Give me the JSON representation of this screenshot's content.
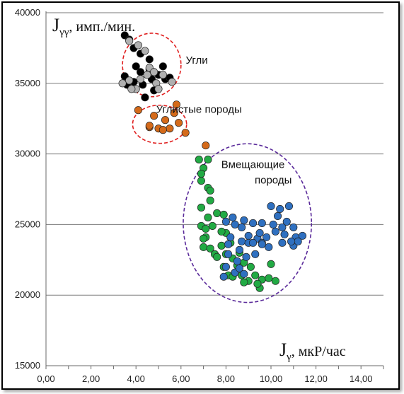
{
  "chart_data": {
    "type": "scatter",
    "y_axis_title": {
      "main": "J",
      "sub": "γγ",
      "unit": ", имп./мин."
    },
    "x_axis_title": {
      "main": "J",
      "sub": "γ",
      "unit": ", мкР/час"
    },
    "xlim": [
      0,
      15
    ],
    "ylim": [
      15000,
      40000
    ],
    "x_ticks": [
      "0,00",
      "2,00",
      "4,00",
      "6,00",
      "8,00",
      "10,00",
      "12,00",
      "14,00"
    ],
    "y_ticks": [
      "15000",
      "20000",
      "25000",
      "30000",
      "35000",
      "40000"
    ],
    "grid": {
      "horizontal": true,
      "vertical": false
    },
    "annotations": [
      {
        "text": "Угли",
        "x": 6.7,
        "y": 36400
      },
      {
        "text": "Углистые  породы",
        "x": 6.8,
        "y": 32900
      },
      {
        "text": "Вмещающие",
        "x": 9.2,
        "y": 29000
      },
      {
        "text": "породы",
        "x": 10.1,
        "y": 27900
      }
    ],
    "ellipses": [
      {
        "name": "Угли",
        "cx": 4.7,
        "cy": 36300,
        "rx": 1.3,
        "ry": 2250,
        "color": "#e02020"
      },
      {
        "name": "Углистые  породы",
        "cx": 5.05,
        "cy": 32100,
        "rx": 1.2,
        "ry": 1350,
        "color": "#e02020"
      },
      {
        "name": "Вмещающие  породы",
        "cx": 8.95,
        "cy": 25100,
        "rx": 2.85,
        "ry": 5620,
        "color": "#5a2a9a"
      }
    ],
    "series": [
      {
        "color": "#000000",
        "points": [
          [
            3.5,
            38400
          ],
          [
            3.7,
            38100
          ],
          [
            3.9,
            37500
          ],
          [
            4.2,
            37100
          ],
          [
            4.6,
            36700
          ],
          [
            3.5,
            35500
          ],
          [
            3.9,
            35100
          ],
          [
            4.3,
            34900
          ],
          [
            4.7,
            35300
          ],
          [
            5.0,
            35600
          ],
          [
            5.3,
            35300
          ],
          [
            4.8,
            34500
          ],
          [
            4.4,
            34000
          ],
          [
            3.6,
            34900
          ],
          [
            4.2,
            35800
          ],
          [
            5.2,
            36200
          ],
          [
            5.5,
            35400
          ],
          [
            4.0,
            36200
          ],
          [
            4.6,
            36000
          ]
        ]
      },
      {
        "color": "#b0b0b0",
        "points": [
          [
            3.7,
            38000
          ],
          [
            4.1,
            37700
          ],
          [
            4.4,
            37300
          ],
          [
            3.7,
            35200
          ],
          [
            4.0,
            34600
          ],
          [
            4.5,
            35600
          ],
          [
            4.9,
            35000
          ],
          [
            5.2,
            35600
          ],
          [
            5.6,
            35100
          ],
          [
            3.8,
            34600
          ],
          [
            4.6,
            36100
          ],
          [
            4.8,
            35800
          ],
          [
            4.2,
            35300
          ],
          [
            3.4,
            35000
          ],
          [
            5.0,
            34600
          ]
        ]
      },
      {
        "color": "#d46a1a",
        "points": [
          [
            4.1,
            33100
          ],
          [
            4.8,
            32700
          ],
          [
            5.3,
            32400
          ],
          [
            5.7,
            32900
          ],
          [
            5.8,
            33500
          ],
          [
            4.6,
            31900
          ],
          [
            5.0,
            31800
          ],
          [
            5.5,
            31800
          ],
          [
            6.2,
            31500
          ],
          [
            7.1,
            30600
          ],
          [
            4.6,
            32000
          ],
          [
            5.2,
            31700
          ],
          [
            5.9,
            32200
          ]
        ]
      },
      {
        "color": "#22aa44",
        "points": [
          [
            6.8,
            29600
          ],
          [
            7.0,
            29000
          ],
          [
            6.9,
            28100
          ],
          [
            7.2,
            27600
          ],
          [
            7.3,
            26700
          ],
          [
            6.9,
            26200
          ],
          [
            7.2,
            25500
          ],
          [
            7.6,
            25800
          ],
          [
            7.9,
            25700
          ],
          [
            6.9,
            24900
          ],
          [
            7.1,
            24100
          ],
          [
            7.4,
            24900
          ],
          [
            7.0,
            23400
          ],
          [
            7.3,
            23300
          ],
          [
            7.5,
            22900
          ],
          [
            7.8,
            23500
          ],
          [
            8.0,
            22900
          ],
          [
            8.3,
            22600
          ],
          [
            8.6,
            23000
          ],
          [
            7.9,
            22000
          ],
          [
            8.4,
            21600
          ],
          [
            8.7,
            21400
          ],
          [
            9.0,
            21000
          ],
          [
            9.3,
            21400
          ],
          [
            9.6,
            21100
          ],
          [
            9.9,
            21200
          ],
          [
            10.2,
            21000
          ],
          [
            9.5,
            20500
          ],
          [
            8.8,
            20900
          ],
          [
            8.1,
            21400
          ],
          [
            8.5,
            22100
          ],
          [
            8.0,
            24400
          ],
          [
            7.8,
            24500
          ],
          [
            7.1,
            24700
          ],
          [
            7.3,
            27400
          ],
          [
            6.9,
            28600
          ],
          [
            7.2,
            29600
          ],
          [
            7.6,
            22700
          ],
          [
            8.8,
            22300
          ],
          [
            9.1,
            22000
          ],
          [
            10.0,
            22200
          ],
          [
            9.4,
            20800
          ],
          [
            8.3,
            21300
          ],
          [
            7.0,
            24000
          ],
          [
            8.2,
            23700
          ]
        ]
      },
      {
        "color": "#2f70c0",
        "points": [
          [
            8.0,
            25200
          ],
          [
            8.4,
            25000
          ],
          [
            8.8,
            25300
          ],
          [
            9.2,
            25100
          ],
          [
            8.2,
            24100
          ],
          [
            8.7,
            23800
          ],
          [
            9.0,
            24200
          ],
          [
            9.4,
            24000
          ],
          [
            9.8,
            24100
          ],
          [
            8.1,
            22900
          ],
          [
            8.5,
            22400
          ],
          [
            8.9,
            22700
          ],
          [
            9.3,
            22900
          ],
          [
            8.0,
            22000
          ],
          [
            8.4,
            21600
          ],
          [
            7.9,
            21300
          ],
          [
            8.6,
            21900
          ],
          [
            10.0,
            26300
          ],
          [
            10.4,
            26100
          ],
          [
            10.8,
            26300
          ],
          [
            10.3,
            25600
          ],
          [
            10.7,
            25200
          ],
          [
            11.0,
            24800
          ],
          [
            10.2,
            24500
          ],
          [
            10.6,
            24300
          ],
          [
            11.1,
            24100
          ],
          [
            10.5,
            23700
          ],
          [
            11.0,
            23500
          ],
          [
            11.4,
            24200
          ],
          [
            11.2,
            23800
          ],
          [
            9.6,
            23700
          ],
          [
            9.9,
            23400
          ],
          [
            8.3,
            25500
          ],
          [
            9.0,
            23700
          ],
          [
            9.5,
            24400
          ],
          [
            10.9,
            23800
          ],
          [
            8.6,
            23200
          ],
          [
            9.2,
            23700
          ],
          [
            8.1,
            23600
          ],
          [
            10.1,
            25000
          ],
          [
            9.6,
            25100
          ],
          [
            8.7,
            24800
          ],
          [
            10.5,
            24800
          ],
          [
            8.8,
            21500
          ],
          [
            9.6,
            23600
          ]
        ]
      }
    ]
  }
}
